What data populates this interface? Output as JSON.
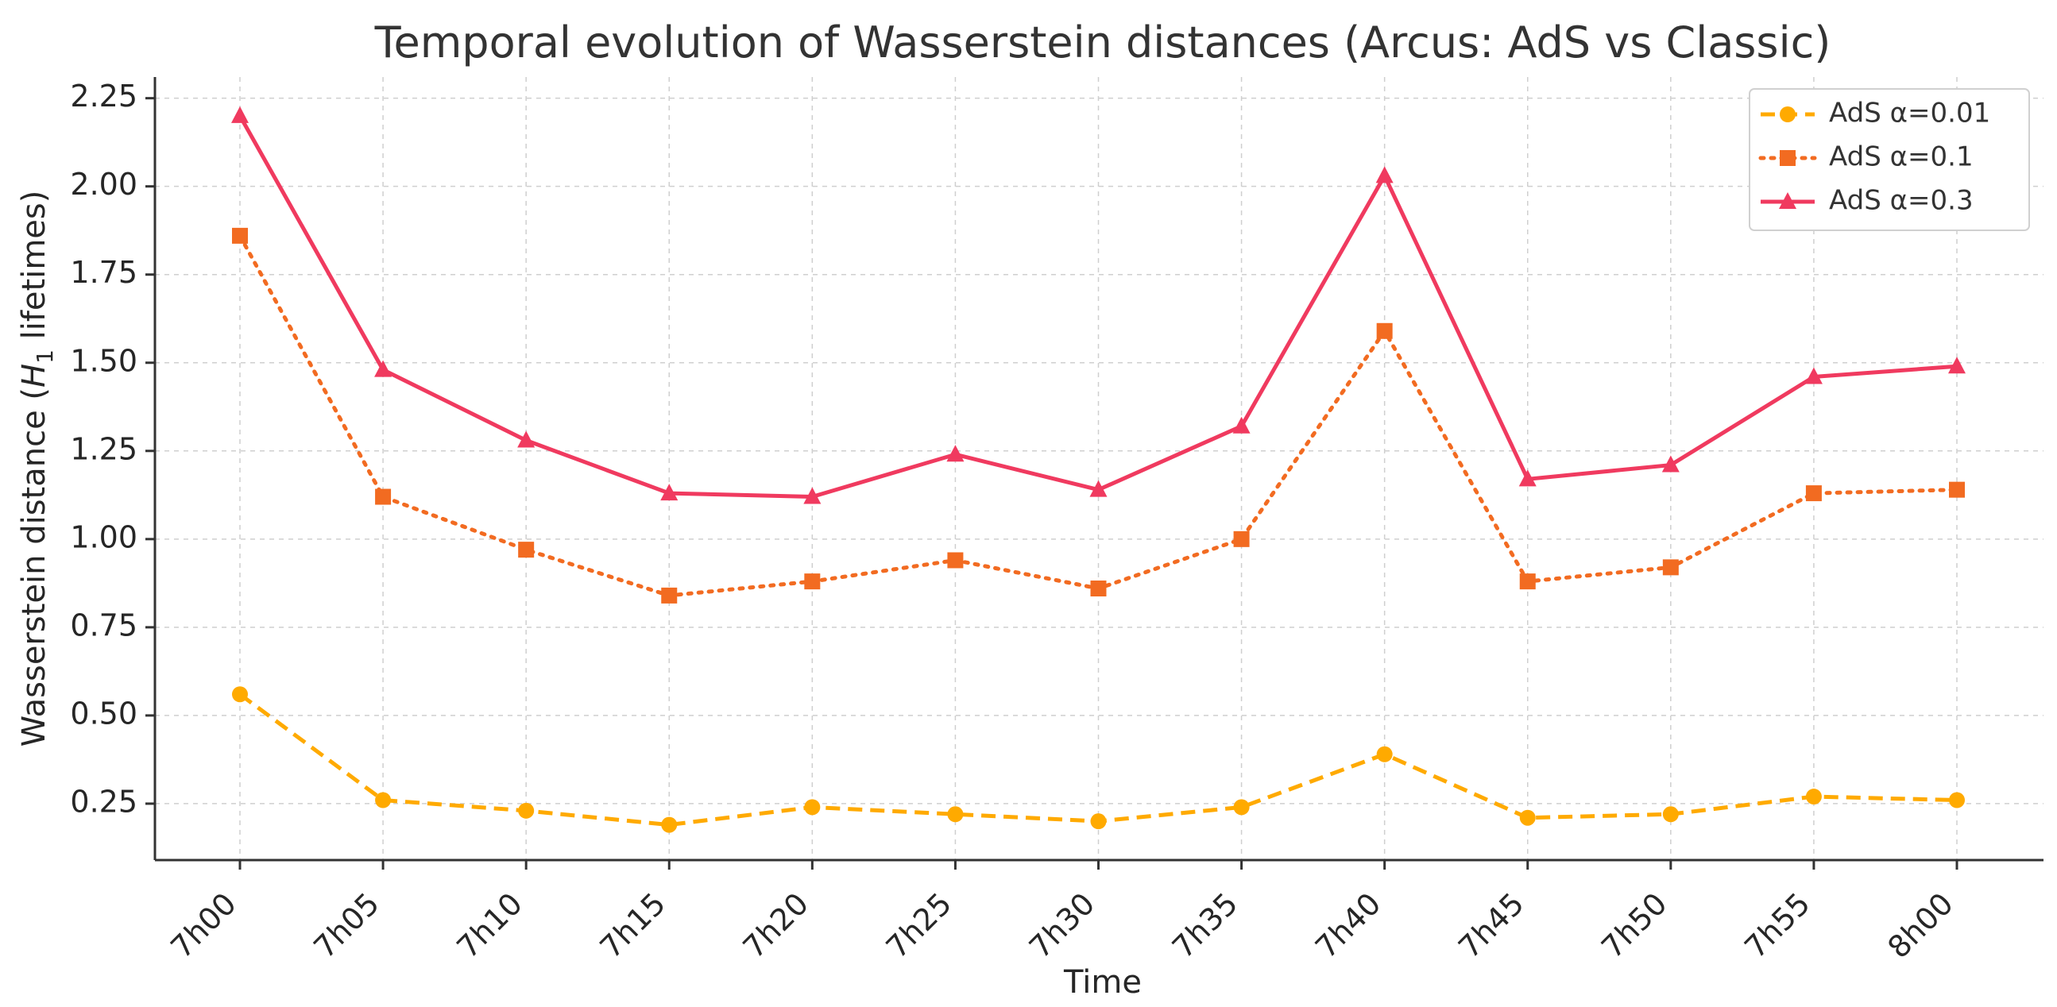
{
  "chart_data": {
    "type": "line",
    "title": "Temporal evolution of Wasserstein distances (Arcus: AdS vs Classic)",
    "xlabel": "Time",
    "ylabel": "Wasserstein distance (",
    "ylabel_math": "H",
    "ylabel_sub": "1",
    "ylabel_tail": " lifetimes)",
    "categories": [
      "7h00",
      "7h05",
      "7h10",
      "7h15",
      "7h20",
      "7h25",
      "7h30",
      "7h35",
      "7h40",
      "7h45",
      "7h50",
      "7h55",
      "8h00"
    ],
    "yticks": [
      "0.25",
      "0.50",
      "0.75",
      "1.00",
      "1.25",
      "1.50",
      "1.75",
      "2.00",
      "2.25"
    ],
    "ylim": [
      0.09,
      2.31
    ],
    "grid": true,
    "legend_position": "top-right",
    "series": [
      {
        "name": "AdS α=0.01",
        "color": "#FFAA00",
        "line_style": "dashed",
        "marker": "circle",
        "values": [
          0.56,
          0.26,
          0.23,
          0.19,
          0.24,
          0.22,
          0.2,
          0.24,
          0.39,
          0.21,
          0.22,
          0.27,
          0.26
        ]
      },
      {
        "name": "AdS α=0.1",
        "color": "#F26B21",
        "line_style": "dotted",
        "marker": "square",
        "values": [
          1.86,
          1.12,
          0.97,
          0.84,
          0.88,
          0.94,
          0.86,
          1.0,
          1.59,
          0.88,
          0.92,
          1.13,
          1.14
        ]
      },
      {
        "name": "AdS α=0.3",
        "color": "#F03A5F",
        "line_style": "solid",
        "marker": "triangle",
        "values": [
          2.2,
          1.48,
          1.28,
          1.13,
          1.12,
          1.24,
          1.14,
          1.32,
          2.03,
          1.17,
          1.21,
          1.46,
          1.49
        ]
      }
    ]
  }
}
